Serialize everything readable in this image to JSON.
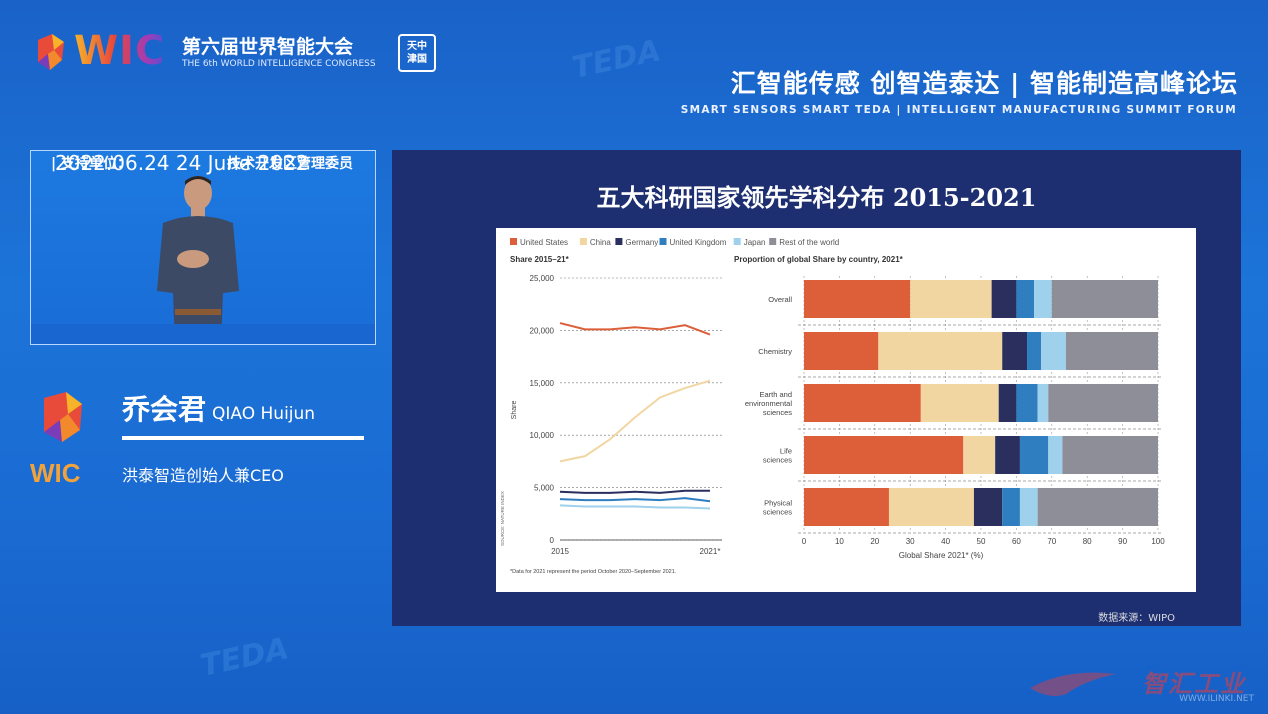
{
  "header": {
    "wic_letters": "WIC",
    "congress_cn": "第六届世界智能大会",
    "congress_en": "THE 6th WORLD INTELLIGENCE CONGRESS",
    "badge_lines": [
      "天中",
      "津国"
    ],
    "forum_cn": "汇智能传感  创智造泰达 | 智能制造高峰论坛",
    "forum_en": "SMART SENSORS  SMART TEDA  |  INTELLIGENT MANUFACTURING SUMMIT FORUM",
    "watermark": "TEDA"
  },
  "video": {
    "date": "2022.06.24    24 June 2022",
    "support_label": "|   支持单位：",
    "support_org": "技术开发区管理委员"
  },
  "speaker": {
    "name_cn": "乔会君",
    "name_en": "QIAO Huijun",
    "title": "洪泰智造创始人兼CEO",
    "side_logo_text": "WIC"
  },
  "slide": {
    "title": "五大科研国家领先学科分布 2015-2021",
    "source": "数据来源：WIPO"
  },
  "chart_data": [
    {
      "type": "line",
      "title": "Share 2015–21*",
      "ylabel": "Share",
      "ylim": [
        0,
        25000
      ],
      "yticks": [
        "0",
        "5,000",
        "10,000",
        "15,000",
        "20,000",
        "25,000"
      ],
      "xtick_labels": [
        "2015",
        "2021*"
      ],
      "x": [
        2015,
        2016,
        2017,
        2018,
        2019,
        2020,
        2021
      ],
      "footnote": "*Data for 2021 represent the period October 2020–September 2021.",
      "source_vertical": "SOURCE: NATURE INDEX",
      "legend": [
        "United States",
        "China",
        "Germany",
        "United Kingdom",
        "Japan",
        "Rest of the world"
      ],
      "colors": {
        "United States": "#dc5f3a",
        "China": "#f2d6a2",
        "Germany": "#2b2f5e",
        "United Kingdom": "#2f7fc0",
        "Japan": "#9fd0ec",
        "Rest of the world": "#8e8e99"
      },
      "series": [
        {
          "name": "United States",
          "values": [
            20700,
            20100,
            20100,
            20300,
            20100,
            20500,
            19600
          ]
        },
        {
          "name": "China",
          "values": [
            7500,
            8000,
            9600,
            11700,
            13600,
            14500,
            15200
          ]
        },
        {
          "name": "Germany",
          "values": [
            4600,
            4500,
            4500,
            4600,
            4500,
            4700,
            4700
          ]
        },
        {
          "name": "United Kingdom",
          "values": [
            3900,
            3800,
            3800,
            3900,
            3800,
            4000,
            3700
          ]
        },
        {
          "name": "Japan",
          "values": [
            3300,
            3200,
            3200,
            3200,
            3100,
            3100,
            3000
          ]
        }
      ]
    },
    {
      "type": "bar",
      "orientation": "horizontal",
      "stacked": true,
      "title": "Proportion of global Share by country, 2021*",
      "xlabel": "Global Share 2021* (%)",
      "xlim": [
        0,
        100
      ],
      "xticks": [
        "0",
        "10",
        "20",
        "30",
        "40",
        "50",
        "60",
        "70",
        "80",
        "90",
        "100"
      ],
      "categories": [
        "Overall",
        "Chemistry",
        "Earth and environmental sciences",
        "Life sciences",
        "Physical sciences"
      ],
      "category_lines": [
        [
          "Overall"
        ],
        [
          "Chemistry"
        ],
        [
          "Earth and",
          "environmental",
          "sciences"
        ],
        [
          "Life",
          "sciences"
        ],
        [
          "Physical",
          "sciences"
        ]
      ],
      "series": [
        {
          "name": "United States",
          "values": [
            30,
            21,
            33,
            45,
            24
          ]
        },
        {
          "name": "China",
          "values": [
            23,
            35,
            22,
            9,
            24
          ]
        },
        {
          "name": "Germany",
          "values": [
            7,
            7,
            5,
            7,
            8
          ]
        },
        {
          "name": "United Kingdom",
          "values": [
            5,
            4,
            6,
            8,
            5
          ]
        },
        {
          "name": "Japan",
          "values": [
            5,
            7,
            3,
            4,
            5
          ]
        },
        {
          "name": "Rest of the world",
          "values": [
            30,
            26,
            31,
            27,
            34
          ]
        }
      ]
    }
  ],
  "brand": {
    "text": "智汇工业",
    "url": "WWW.ILINKI.NET"
  }
}
